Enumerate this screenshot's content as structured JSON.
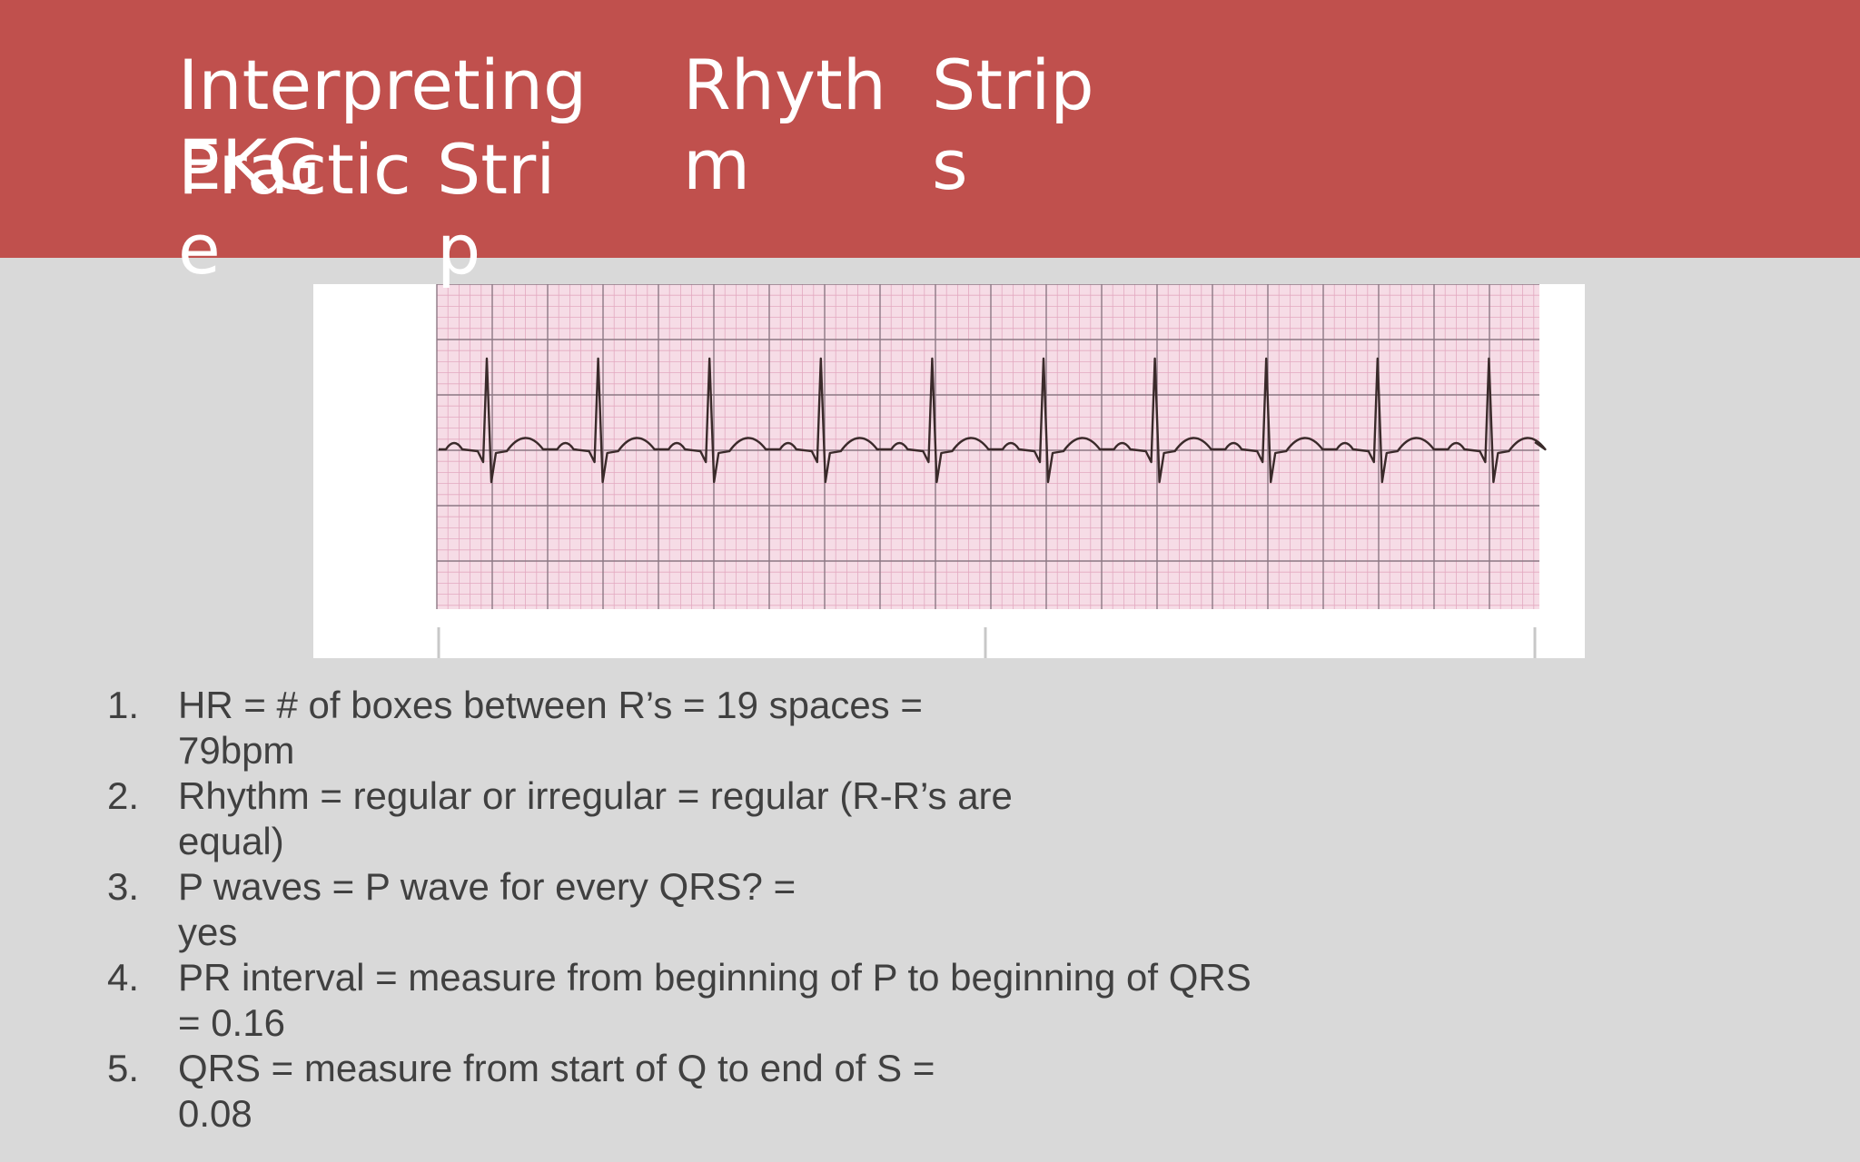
{
  "slide": {
    "title_fragments": [
      "Interpreting",
      "EKG",
      "Rhyth",
      "m",
      "Strip",
      "s",
      "Practic",
      "e",
      "Stri",
      "p"
    ],
    "background_color": "#d9d9d9",
    "header_color": "#c0504d",
    "text_color": "#404040"
  },
  "ecg_strip": {
    "image_description": "ecg-rhythm-strip-icon",
    "grid_color": "#f2c4d4",
    "trace_color": "#3a2a2a",
    "beat_count": 10
  },
  "steps": [
    {
      "number": "1.",
      "lines": [
        "HR = # of boxes between R’s = 19 spaces =",
        "79bpm"
      ]
    },
    {
      "number": "2.",
      "lines": [
        "Rhythm = regular or irregular = regular (R-R’s are",
        "equal)"
      ]
    },
    {
      "number": "3.",
      "lines": [
        "P waves = P wave for every QRS? =",
        "yes"
      ]
    },
    {
      "number": "4.",
      "lines": [
        "PR interval = measure from beginning of P to beginning of QRS",
        "= 0.16"
      ]
    },
    {
      "number": "5.",
      "lines": [
        "QRS = measure from start of Q to end of S =",
        "0.08"
      ]
    }
  ]
}
